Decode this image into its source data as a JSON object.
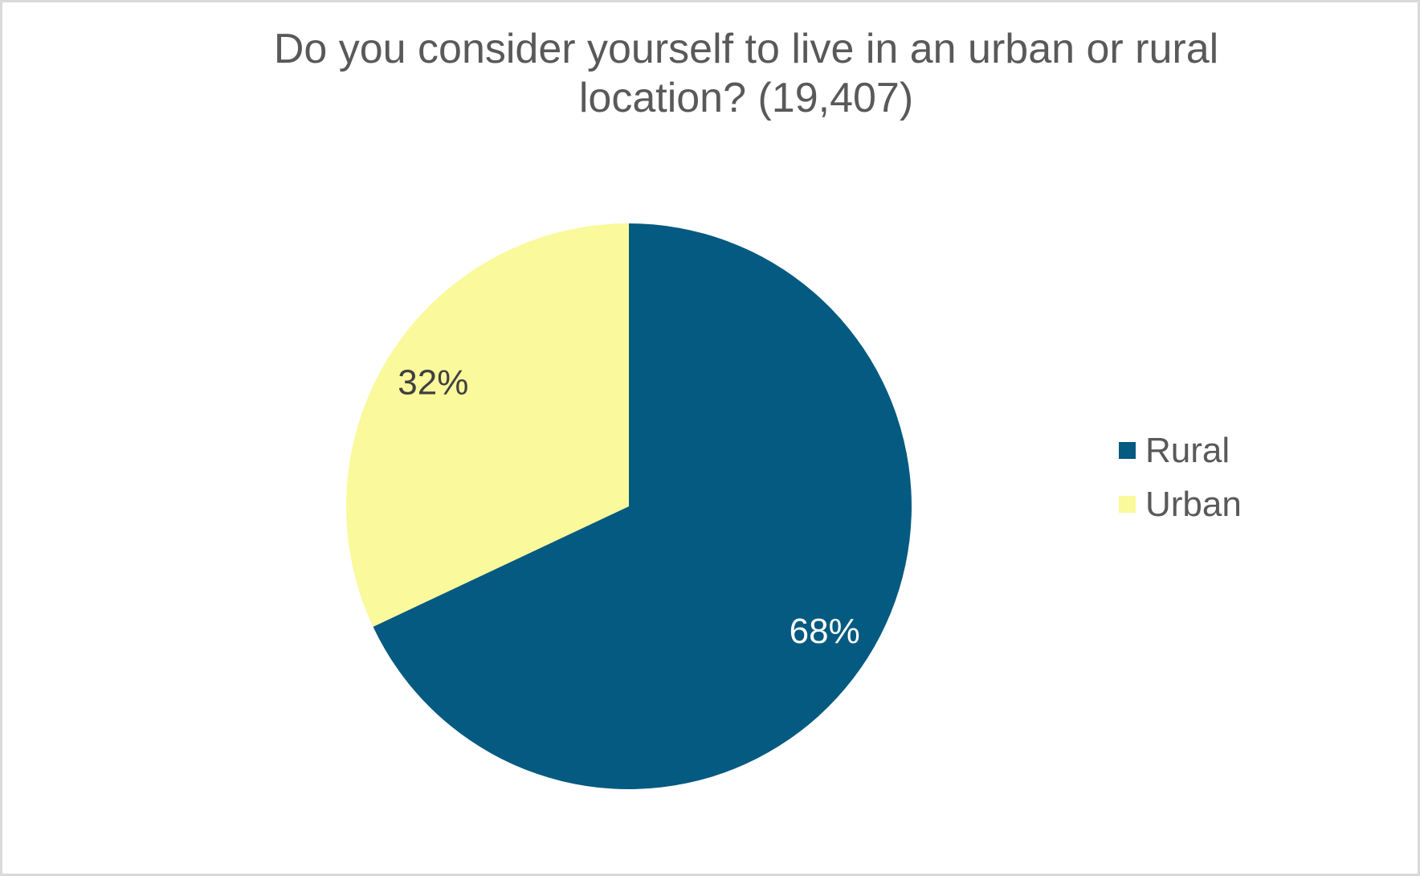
{
  "page": {
    "background": "#ffffff",
    "border_color": "#d9d9d9"
  },
  "title": {
    "line1": "Do you consider yourself to live in an urban or rural",
    "line2": "location? (19,407)",
    "color": "#595959"
  },
  "chart_data": {
    "type": "pie",
    "title": "Do you consider yourself to live in an urban or rural location? (19,407)",
    "respondent_count": "19,407",
    "categories": [
      "Rural",
      "Urban"
    ],
    "values": [
      68,
      32
    ],
    "unit": "%",
    "colors": [
      "#045A80",
      "#FAF99C"
    ],
    "data_labels": [
      {
        "text": "68%",
        "color": "#FFFFFF"
      },
      {
        "text": "32%",
        "color": "#404040"
      }
    ],
    "start_angle_deg": 0,
    "direction": "clockwise",
    "legend_position": "right",
    "label_radius_fraction": 0.82
  },
  "legend": {
    "items": [
      {
        "label": "Rural",
        "color": "#045A80"
      },
      {
        "label": "Urban",
        "color": "#FAF99C"
      }
    ]
  }
}
